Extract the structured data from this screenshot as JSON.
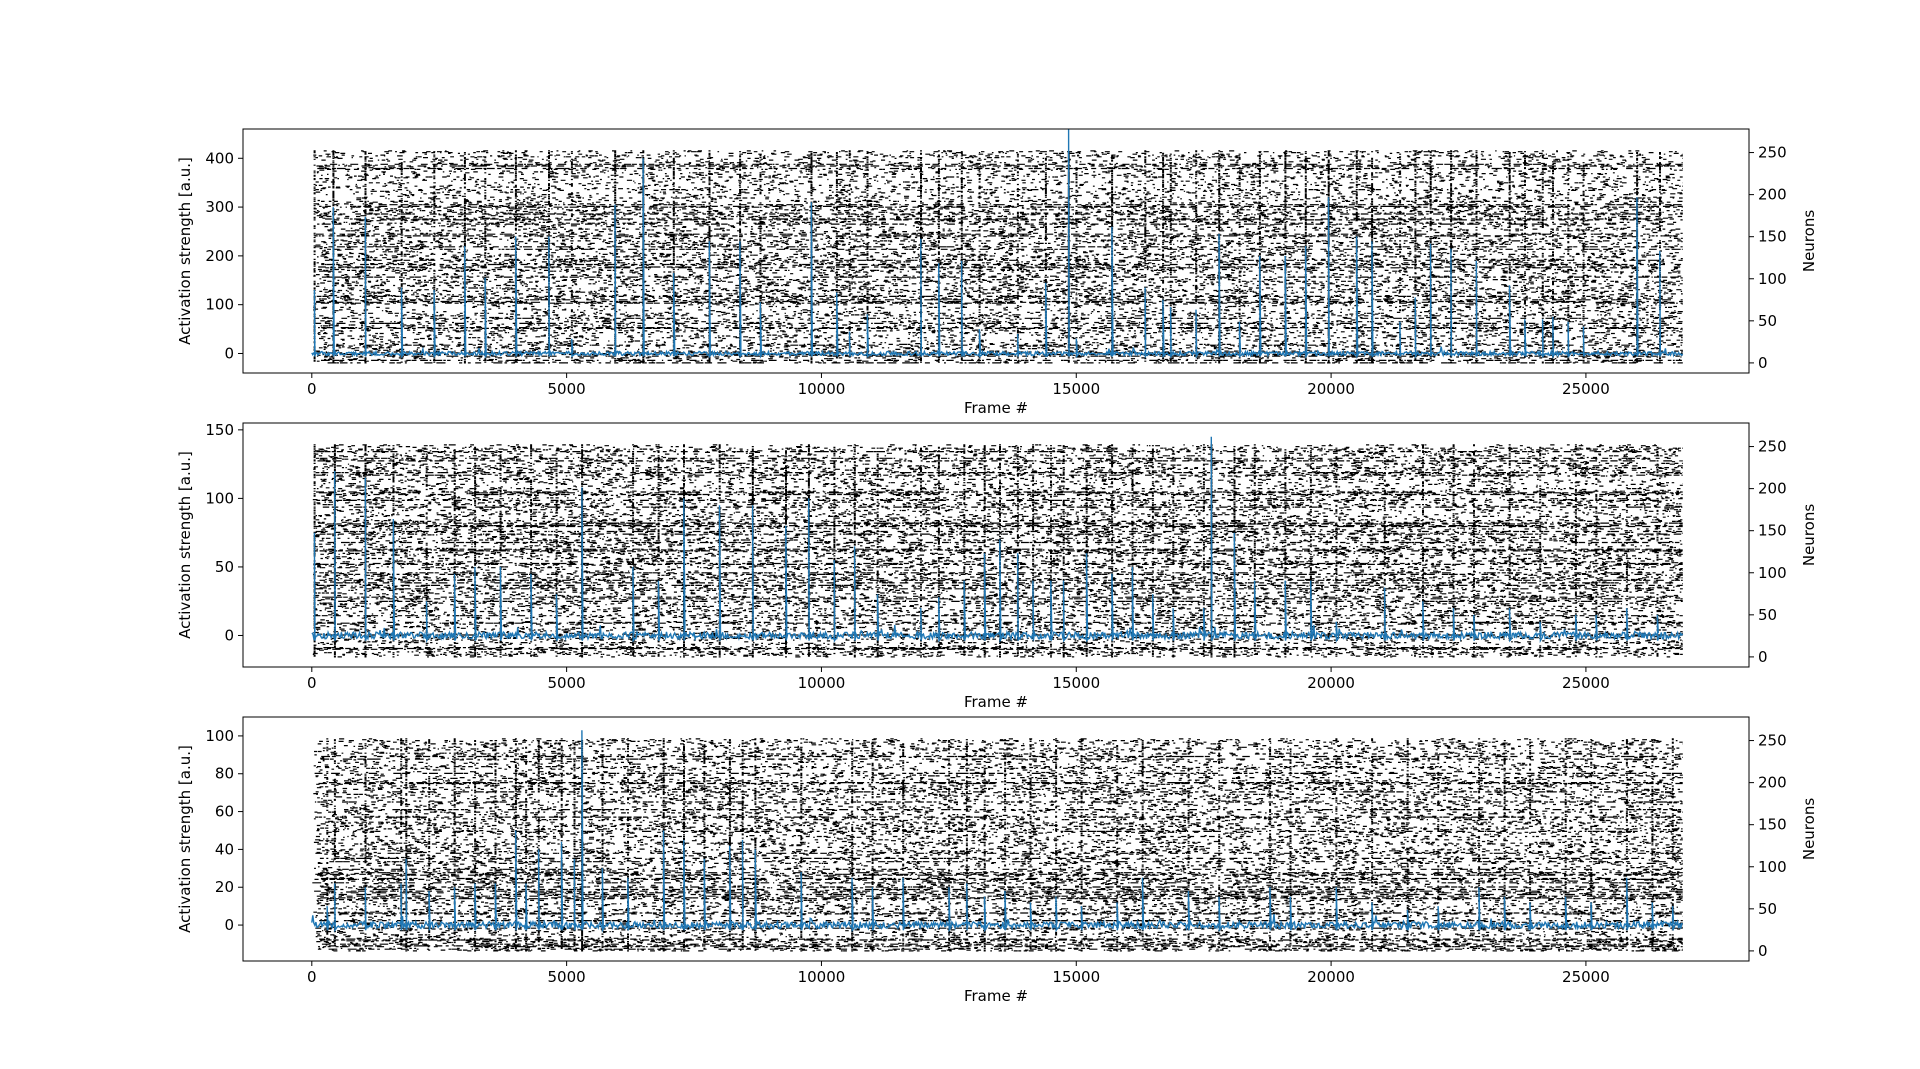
{
  "colors": {
    "trace": "#1f77b4",
    "raster": "#000000",
    "axes": "#000000",
    "background": "#ffffff"
  },
  "chart_data": [
    {
      "type": "line",
      "overlay_type": "raster",
      "xlabel": "Frame #",
      "ylabel": "Activation strength [a.u.]",
      "ylabel_right": "Neurons",
      "xlim": [
        -1350,
        28200
      ],
      "ylim": [
        -40,
        460
      ],
      "ylim_right": [
        -12,
        278
      ],
      "xticks": [
        0,
        5000,
        10000,
        15000,
        20000,
        25000
      ],
      "yticks": [
        0,
        100,
        200,
        300,
        400
      ],
      "yticks_right": [
        0,
        50,
        100,
        150,
        200,
        250
      ],
      "grid": false,
      "n_frames": 26900,
      "n_neurons": 253,
      "baseline": 0,
      "noise": 4,
      "series": [
        {
          "values_description": "x: frame, y: activation strength",
          "peaks": [
            [
              50,
              130
            ],
            [
              420,
              300
            ],
            [
              1050,
              280
            ],
            [
              1760,
              135
            ],
            [
              2400,
              130
            ],
            [
              3000,
              220
            ],
            [
              3400,
              155
            ],
            [
              4000,
              240
            ],
            [
              4650,
              240
            ],
            [
              5100,
              30
            ],
            [
              5950,
              305
            ],
            [
              6500,
              400
            ],
            [
              7100,
              165
            ],
            [
              7800,
              230
            ],
            [
              8400,
              230
            ],
            [
              8800,
              105
            ],
            [
              9800,
              310
            ],
            [
              10300,
              125
            ],
            [
              10550,
              45
            ],
            [
              10900,
              80
            ],
            [
              11950,
              235
            ],
            [
              12300,
              185
            ],
            [
              12750,
              190
            ],
            [
              13100,
              50
            ],
            [
              13850,
              40
            ],
            [
              14400,
              145
            ],
            [
              14850,
              460
            ],
            [
              15000,
              30
            ],
            [
              15700,
              260
            ],
            [
              16350,
              135
            ],
            [
              16700,
              110
            ],
            [
              16850,
              95
            ],
            [
              17350,
              90
            ],
            [
              17800,
              245
            ],
            [
              18200,
              65
            ],
            [
              18600,
              200
            ],
            [
              19100,
              200
            ],
            [
              19500,
              220
            ],
            [
              19950,
              320
            ],
            [
              20500,
              240
            ],
            [
              20800,
              230
            ],
            [
              21350,
              65
            ],
            [
              21650,
              115
            ],
            [
              21950,
              225
            ],
            [
              22350,
              215
            ],
            [
              22850,
              190
            ],
            [
              23500,
              140
            ],
            [
              23800,
              70
            ],
            [
              24150,
              70
            ],
            [
              24350,
              75
            ],
            [
              24650,
              65
            ],
            [
              24950,
              55
            ],
            [
              26000,
              320
            ],
            [
              26450,
              210
            ]
          ]
        }
      ]
    },
    {
      "type": "line",
      "overlay_type": "raster",
      "xlabel": "Frame #",
      "ylabel": "Activation strength [a.u.]",
      "ylabel_right": "Neurons",
      "xlim": [
        -1350,
        28200
      ],
      "ylim": [
        -23,
        155
      ],
      "ylim_right": [
        -12,
        278
      ],
      "xticks": [
        0,
        5000,
        10000,
        15000,
        20000,
        25000
      ],
      "yticks": [
        0,
        50,
        100,
        150
      ],
      "yticks_right": [
        0,
        50,
        100,
        150,
        200,
        250
      ],
      "grid": false,
      "n_frames": 26900,
      "n_neurons": 253,
      "baseline": 0,
      "noise": 2.5,
      "series": [
        {
          "values_description": "x: frame, y: activation strength",
          "peaks": [
            [
              50,
              75
            ],
            [
              450,
              120
            ],
            [
              1050,
              115
            ],
            [
              1600,
              85
            ],
            [
              2250,
              25
            ],
            [
              2800,
              45
            ],
            [
              3200,
              50
            ],
            [
              3700,
              50
            ],
            [
              4300,
              45
            ],
            [
              4800,
              30
            ],
            [
              5300,
              108
            ],
            [
              6300,
              50
            ],
            [
              6800,
              40
            ],
            [
              7300,
              100
            ],
            [
              8000,
              95
            ],
            [
              8650,
              95
            ],
            [
              9300,
              80
            ],
            [
              9750,
              100
            ],
            [
              10250,
              55
            ],
            [
              10650,
              65
            ],
            [
              11100,
              30
            ],
            [
              11950,
              20
            ],
            [
              12300,
              28
            ],
            [
              12800,
              40
            ],
            [
              13200,
              60
            ],
            [
              13500,
              70
            ],
            [
              13850,
              60
            ],
            [
              14150,
              40
            ],
            [
              14500,
              40
            ],
            [
              14750,
              40
            ],
            [
              15200,
              60
            ],
            [
              15700,
              45
            ],
            [
              16100,
              50
            ],
            [
              16500,
              30
            ],
            [
              16900,
              20
            ],
            [
              17500,
              20
            ],
            [
              17650,
              145
            ],
            [
              18100,
              75
            ],
            [
              18500,
              40
            ],
            [
              19100,
              40
            ],
            [
              19600,
              40
            ],
            [
              20100,
              10
            ],
            [
              21050,
              35
            ],
            [
              21800,
              25
            ],
            [
              22400,
              20
            ],
            [
              22800,
              15
            ],
            [
              23500,
              20
            ],
            [
              24100,
              10
            ],
            [
              24800,
              15
            ],
            [
              25200,
              15
            ],
            [
              25800,
              20
            ],
            [
              26400,
              15
            ]
          ]
        }
      ]
    },
    {
      "type": "line",
      "overlay_type": "raster",
      "xlabel": "Frame #",
      "ylabel": "Activation strength [a.u.]",
      "ylabel_right": "Neurons",
      "xlim": [
        -1350,
        28200
      ],
      "ylim": [
        -19,
        110
      ],
      "ylim_right": [
        -12,
        278
      ],
      "xticks": [
        0,
        5000,
        10000,
        15000,
        20000,
        25000
      ],
      "yticks": [
        0,
        20,
        40,
        60,
        80,
        100
      ],
      "yticks_right": [
        0,
        50,
        100,
        150,
        200,
        250
      ],
      "grid": false,
      "n_frames": 26900,
      "n_neurons": 253,
      "baseline": 0,
      "noise": 1.8,
      "series": [
        {
          "values_description": "x: frame, y: activation strength",
          "peaks": [
            [
              300,
              10
            ],
            [
              450,
              22
            ],
            [
              1050,
              20
            ],
            [
              1750,
              22
            ],
            [
              1850,
              35
            ],
            [
              2300,
              18
            ],
            [
              2800,
              20
            ],
            [
              3200,
              22
            ],
            [
              3600,
              22
            ],
            [
              4000,
              50
            ],
            [
              4200,
              22
            ],
            [
              4450,
              40
            ],
            [
              4900,
              44
            ],
            [
              5150,
              35
            ],
            [
              5300,
              103
            ],
            [
              5700,
              30
            ],
            [
              6200,
              25
            ],
            [
              6900,
              50
            ],
            [
              7300,
              45
            ],
            [
              7700,
              35
            ],
            [
              8200,
              42
            ],
            [
              8450,
              45
            ],
            [
              8700,
              40
            ],
            [
              9600,
              28
            ],
            [
              10600,
              25
            ],
            [
              11000,
              20
            ],
            [
              11600,
              25
            ],
            [
              12500,
              20
            ],
            [
              12850,
              22
            ],
            [
              13200,
              15
            ],
            [
              13600,
              18
            ],
            [
              14100,
              12
            ],
            [
              14600,
              15
            ],
            [
              15100,
              10
            ],
            [
              15800,
              12
            ],
            [
              16300,
              25
            ],
            [
              17200,
              18
            ],
            [
              17800,
              15
            ],
            [
              18800,
              20
            ],
            [
              19200,
              15
            ],
            [
              20100,
              20
            ],
            [
              20800,
              12
            ],
            [
              21500,
              8
            ],
            [
              22100,
              10
            ],
            [
              22900,
              20
            ],
            [
              23400,
              15
            ],
            [
              23900,
              12
            ],
            [
              24600,
              15
            ],
            [
              25100,
              12
            ],
            [
              25800,
              25
            ],
            [
              26300,
              12
            ],
            [
              26700,
              10
            ]
          ]
        }
      ]
    }
  ]
}
